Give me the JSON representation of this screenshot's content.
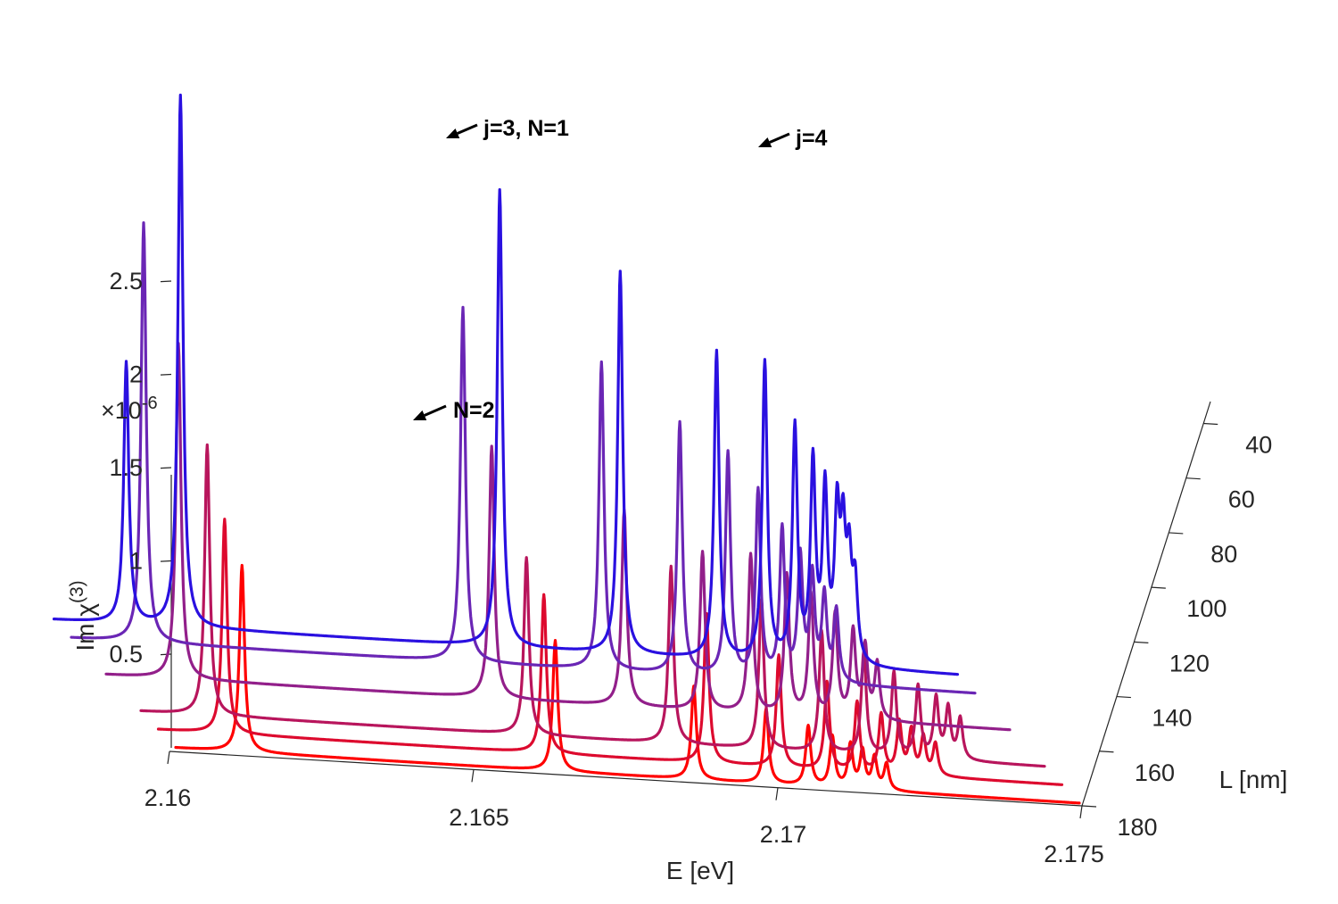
{
  "chart_data": {
    "type": "line",
    "style": "waterfall-3d",
    "xlabel": "E [eV]",
    "ylabel": "Im χ",
    "ylabel_superscript": "(3)",
    "zlabel": "L [nm]",
    "y_multiplier": "×10",
    "y_multiplier_exp": "-6",
    "xlim": [
      2.16,
      2.175
    ],
    "x_ticks": [
      "2.16",
      "2.165",
      "2.17",
      "2.175"
    ],
    "x_tick_values": [
      2.16,
      2.165,
      2.17,
      2.175
    ],
    "y_ticks": [
      "0.5",
      "1",
      "1.5",
      "2",
      "2.5"
    ],
    "y_tick_values": [
      0.5,
      1,
      1.5,
      2,
      2.5
    ],
    "z_ticks": [
      "40",
      "60",
      "80",
      "100",
      "120",
      "140",
      "160",
      "180"
    ],
    "z_tick_values": [
      40,
      60,
      80,
      100,
      120,
      140,
      160,
      180
    ],
    "series": [
      {
        "name": "L = 180 nm",
        "L": 180,
        "color": "#ff0000",
        "peaks": [
          {
            "E": 2.1611,
            "height": 1.0,
            "width": 5e-05
          },
          {
            "E": 2.1663,
            "height": 0.7,
            "width": 5e-05
          },
          {
            "E": 2.1686,
            "height": 0.5,
            "width": 5e-05
          },
          {
            "E": 2.1698,
            "height": 0.4,
            "width": 5e-05
          },
          {
            "E": 2.1705,
            "height": 0.32,
            "width": 5e-05
          },
          {
            "E": 2.1709,
            "height": 0.27,
            "width": 5e-05
          },
          {
            "E": 2.1712,
            "height": 0.23,
            "width": 5e-05
          },
          {
            "E": 2.1714,
            "height": 0.2,
            "width": 5e-05
          },
          {
            "E": 2.1716,
            "height": 0.17,
            "width": 5e-05
          },
          {
            "E": 2.1718,
            "height": 0.14,
            "width": 5e-05
          }
        ]
      },
      {
        "name": "L = 160 nm",
        "L": 160,
        "color": "#dd0a2e",
        "peaks": [
          {
            "E": 2.1611,
            "height": 1.15,
            "width": 5e-05
          },
          {
            "E": 2.1664,
            "height": 0.85,
            "width": 5e-05
          },
          {
            "E": 2.1691,
            "height": 0.8,
            "width": 5e-05
          },
          {
            "E": 2.1703,
            "height": 0.6,
            "width": 5e-05
          },
          {
            "E": 2.1711,
            "height": 0.47,
            "width": 5e-05
          },
          {
            "E": 2.1716,
            "height": 0.37,
            "width": 5e-05
          },
          {
            "E": 2.172,
            "height": 0.31,
            "width": 5e-05
          },
          {
            "E": 2.1723,
            "height": 0.27,
            "width": 5e-05
          },
          {
            "E": 2.1725,
            "height": 0.23,
            "width": 5e-05
          },
          {
            "E": 2.1727,
            "height": 0.2,
            "width": 5e-05
          },
          {
            "E": 2.1729,
            "height": 0.17,
            "width": 5e-05
          }
        ]
      },
      {
        "name": "L = 140 nm",
        "L": 140,
        "color": "#b8155c",
        "peaks": [
          {
            "E": 2.1611,
            "height": 1.45,
            "width": 5e-05
          },
          {
            "E": 2.1664,
            "height": 0.95,
            "width": 5e-05
          },
          {
            "E": 2.1688,
            "height": 0.95,
            "width": 5e-05
          },
          {
            "E": 2.1703,
            "height": 0.8,
            "width": 5e-05
          },
          {
            "E": 2.1713,
            "height": 0.65,
            "width": 5e-05
          },
          {
            "E": 2.172,
            "height": 0.55,
            "width": 5e-05
          },
          {
            "E": 2.1725,
            "height": 0.45,
            "width": 5e-05
          },
          {
            "E": 2.1729,
            "height": 0.38,
            "width": 5e-05
          },
          {
            "E": 2.1732,
            "height": 0.32,
            "width": 5e-05
          },
          {
            "E": 2.1734,
            "height": 0.27,
            "width": 5e-05
          },
          {
            "E": 2.1736,
            "height": 0.22,
            "width": 5e-05
          }
        ]
      },
      {
        "name": "L = 100 nm",
        "L": 100,
        "color": "#921f8a",
        "peaks": [
          {
            "E": 2.1612,
            "height": 1.8,
            "width": 5e-05
          },
          {
            "E": 2.1664,
            "height": 1.35,
            "width": 5e-05
          },
          {
            "E": 2.1686,
            "height": 1.05,
            "width": 5e-05
          },
          {
            "E": 2.1699,
            "height": 0.85,
            "width": 5e-05
          },
          {
            "E": 2.1707,
            "height": 0.85,
            "width": 5e-05
          },
          {
            "E": 2.1713,
            "height": 0.75,
            "width": 5e-05
          },
          {
            "E": 2.1717,
            "height": 0.65,
            "width": 5e-05
          },
          {
            "E": 2.1721,
            "height": 0.55,
            "width": 5e-05
          },
          {
            "E": 2.1724,
            "height": 0.46,
            "width": 5e-05
          },
          {
            "E": 2.1726,
            "height": 0.38,
            "width": 5e-05
          },
          {
            "E": 2.1728,
            "height": 0.3,
            "width": 5e-05
          }
        ]
      },
      {
        "name": "L = 60 nm",
        "L": 60,
        "color": "#6a26b5",
        "peaks": [
          {
            "E": 2.1612,
            "height": 2.25,
            "width": 5e-05
          },
          {
            "E": 2.1665,
            "height": 1.9,
            "width": 5e-05
          },
          {
            "E": 2.1688,
            "height": 1.65,
            "width": 5e-05
          },
          {
            "E": 2.1701,
            "height": 1.35,
            "width": 5e-05
          },
          {
            "E": 2.1709,
            "height": 1.2,
            "width": 5e-05
          },
          {
            "E": 2.1714,
            "height": 1.0,
            "width": 5e-05
          },
          {
            "E": 2.1718,
            "height": 0.8,
            "width": 5e-05
          },
          {
            "E": 2.1721,
            "height": 0.65,
            "width": 5e-05
          },
          {
            "E": 2.1723,
            "height": 0.55,
            "width": 5e-05
          },
          {
            "E": 2.1725,
            "height": 0.45,
            "width": 5e-05
          },
          {
            "E": 2.1727,
            "height": 0.38,
            "width": 5e-05
          }
        ]
      },
      {
        "name": "L = 40 nm",
        "L": 40,
        "color": "#2a10e0",
        "peaks": [
          {
            "E": 2.1612,
            "height": 1.4,
            "width": 5e-05
          },
          {
            "E": 2.1621,
            "height": 2.85,
            "width": 5e-05
          },
          {
            "E": 2.1674,
            "height": 2.45,
            "width": 5e-05
          },
          {
            "E": 2.1694,
            "height": 2.05,
            "width": 5e-05
          },
          {
            "E": 2.171,
            "height": 1.65,
            "width": 5e-05
          },
          {
            "E": 2.1718,
            "height": 1.6,
            "width": 5e-05
          },
          {
            "E": 2.1723,
            "height": 1.25,
            "width": 5e-05
          },
          {
            "E": 2.1726,
            "height": 1.05,
            "width": 5e-05
          },
          {
            "E": 2.1728,
            "height": 0.9,
            "width": 5e-05
          },
          {
            "E": 2.173,
            "height": 0.75,
            "width": 5e-05
          },
          {
            "E": 2.1731,
            "height": 0.62,
            "width": 5e-05
          },
          {
            "E": 2.1732,
            "height": 0.5,
            "width": 5e-05
          },
          {
            "E": 2.1733,
            "height": 0.4,
            "width": 5e-05
          }
        ]
      }
    ],
    "annotations": [
      {
        "text": "j=3, N=1"
      },
      {
        "text": "j=4"
      },
      {
        "text": "N=2"
      }
    ]
  }
}
